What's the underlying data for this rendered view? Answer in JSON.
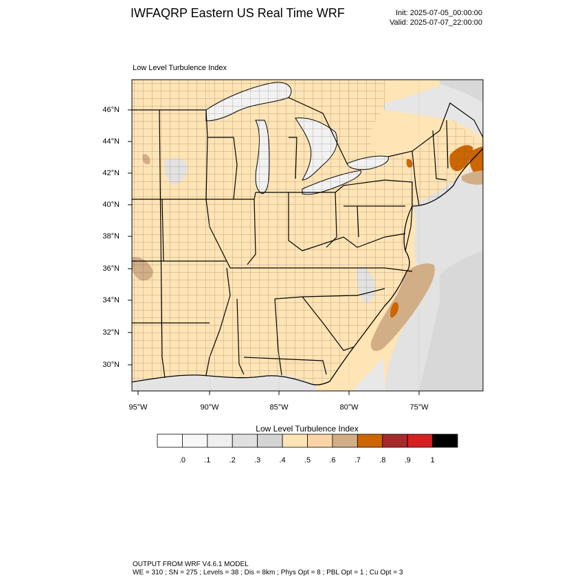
{
  "header": {
    "title": "IWFAQRP Eastern US Real Time WRF",
    "init": "Init: 2025-07-05_00:00:00",
    "valid": "Valid: 2025-07-07_22:00:00"
  },
  "map": {
    "panel_title": "Low Level Turbulence Index",
    "lat_labels": [
      "46°N",
      "44°N",
      "42°N",
      "40°N",
      "38°N",
      "36°N",
      "34°N",
      "32°N",
      "30°N"
    ],
    "lon_labels": [
      "95°W",
      "90°W",
      "85°W",
      "80°W",
      "75°W"
    ],
    "field": "Low Level Turbulence Index"
  },
  "colorbar": {
    "title": "Low Level Turbulence Index",
    "colors": [
      "#ffffff",
      "#f7f7f7",
      "#efefef",
      "#e0e0e0",
      "#d4d4d4",
      "#ffe4b5",
      "#fad4a4",
      "#d2ae86",
      "#cc6600",
      "#a52a2a",
      "#d42020",
      "#000000"
    ],
    "ticks": [
      ".0",
      ".1",
      ".2",
      ".3",
      ".4",
      ".5",
      ".6",
      ".7",
      ".8",
      ".9",
      "1"
    ]
  },
  "footer": {
    "line1": "OUTPUT FROM WRF V4.6.1 MODEL",
    "line2": "WE = 310 ; SN = 275 ; Levels = 38 ; Dis = 8km ; Phys Opt = 8 ; PBL Opt = 1 ; Cu Opt = 3"
  }
}
